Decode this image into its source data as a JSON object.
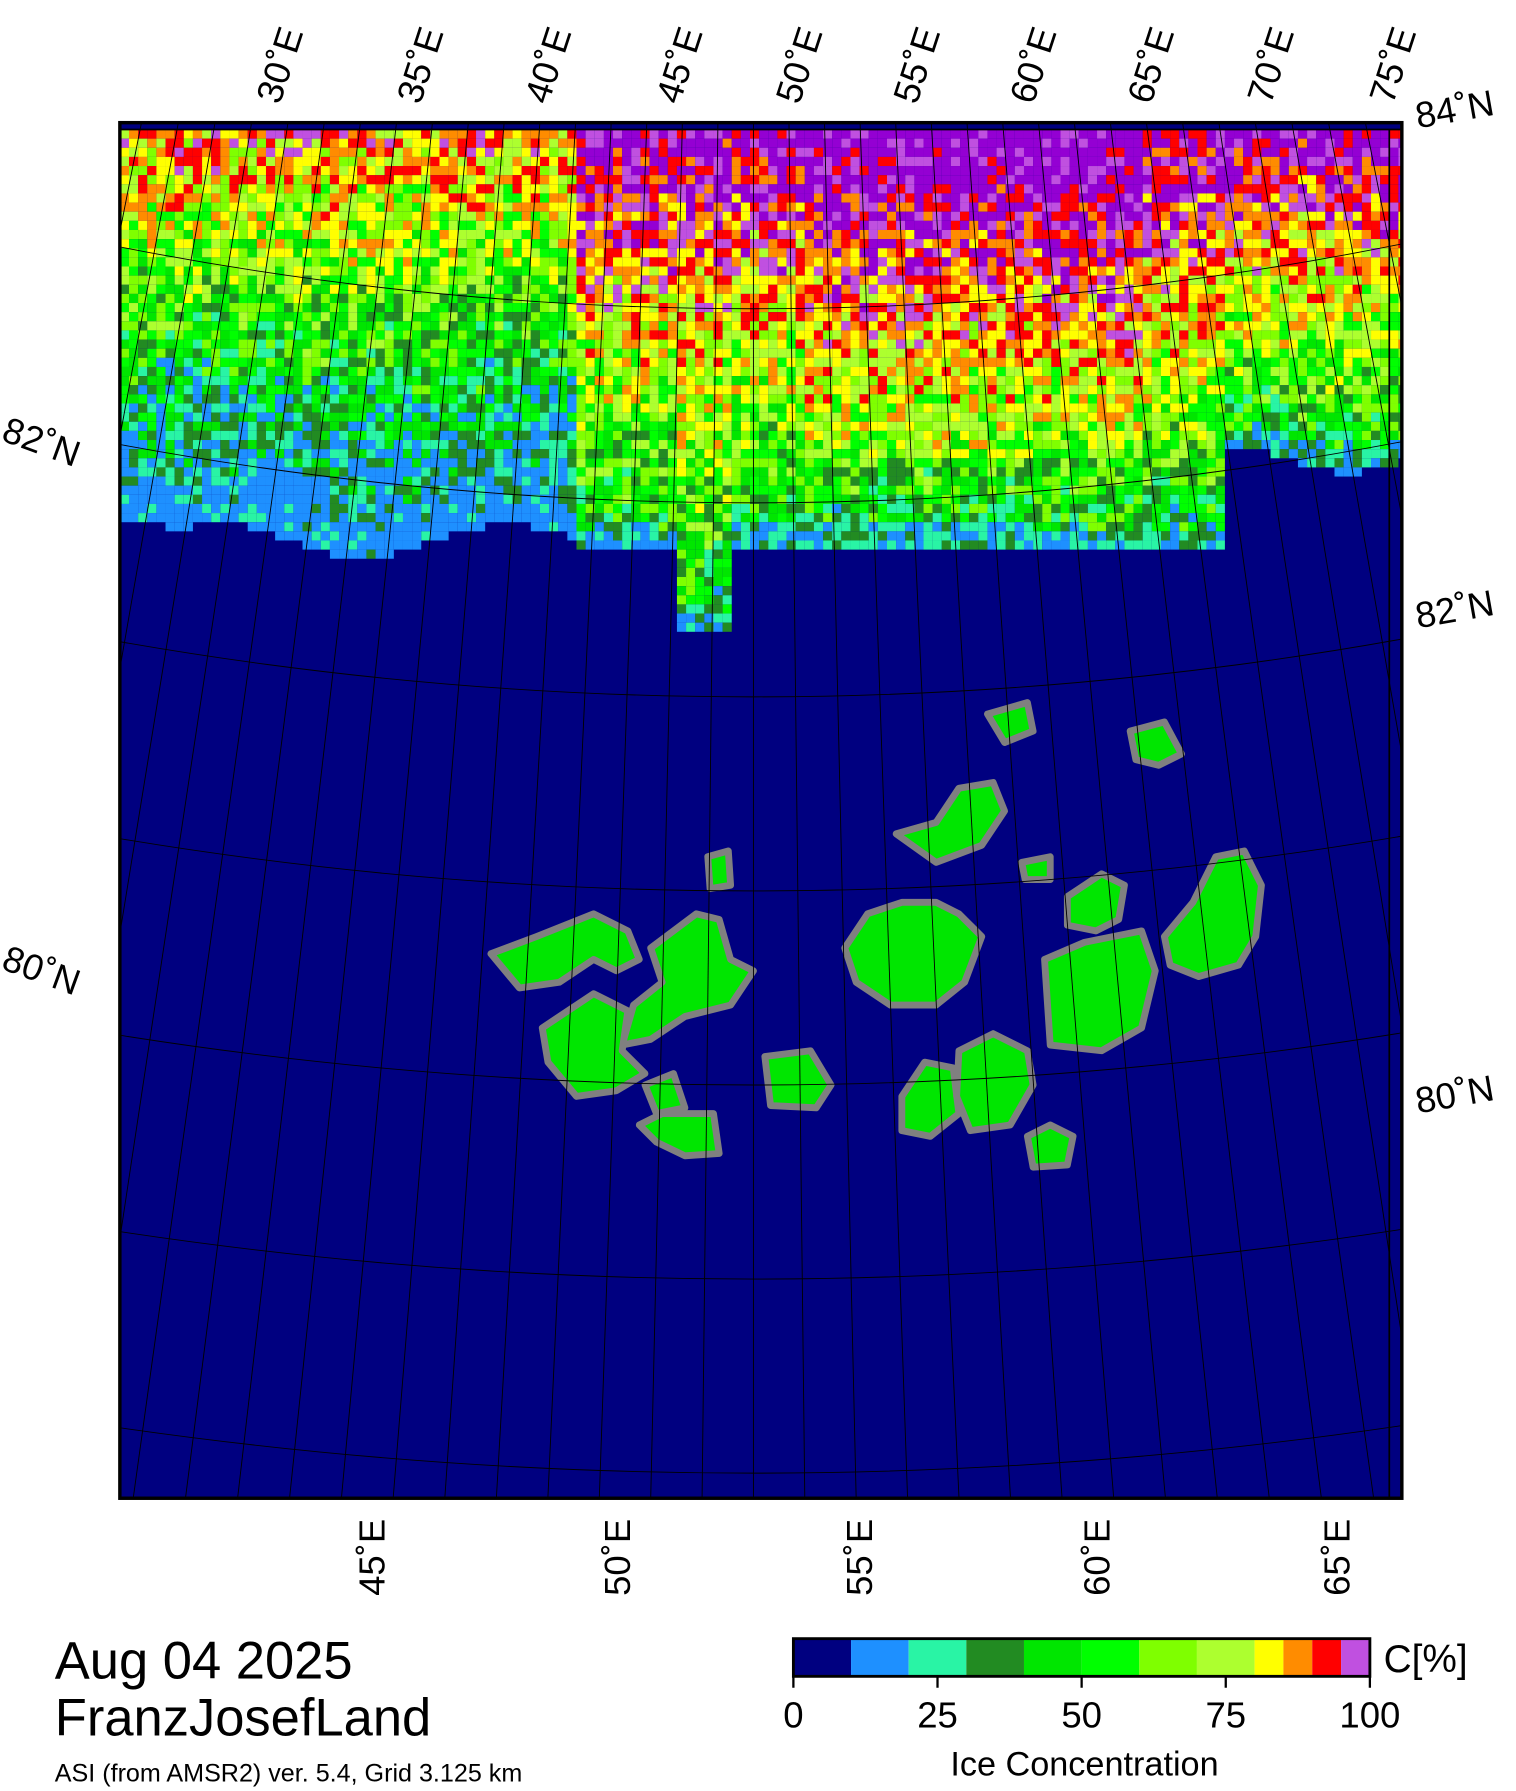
{
  "map": {
    "top_lon_labels": [
      "30˚E",
      "35˚E",
      "40˚E",
      "45˚E",
      "50˚E",
      "55˚E",
      "60˚E",
      "65˚E",
      "70˚E",
      "75˚E"
    ],
    "bottom_lon_labels": [
      "45˚E",
      "50˚E",
      "55˚E",
      "60˚E",
      "65˚E"
    ],
    "left_lat_labels": [
      "82˚N",
      "80˚N"
    ],
    "right_lat_labels": [
      "84˚N",
      "82˚N",
      "80˚N"
    ]
  },
  "footer": {
    "date": "Aug 04 2025",
    "region": "FranzJosefLand",
    "source": "ASI (from AMSR2) ver. 5.4,  Grid 3.125 km"
  },
  "colorbar": {
    "unit": "C[%]",
    "label": "Ice Concentration",
    "bins": [
      0,
      10,
      20,
      30,
      40,
      50,
      60,
      70,
      80,
      85,
      90,
      95,
      100
    ],
    "colors": [
      "#000080",
      "#1e90ff",
      "#29f4a5",
      "#228b22",
      "#00e600",
      "#00ff00",
      "#7fff00",
      "#adff2f",
      "#ffff00",
      "#ff8c00",
      "#ff0000",
      "#c050e0",
      "#9400d3"
    ],
    "ticks": [
      0,
      25,
      50,
      75,
      100
    ]
  }
}
